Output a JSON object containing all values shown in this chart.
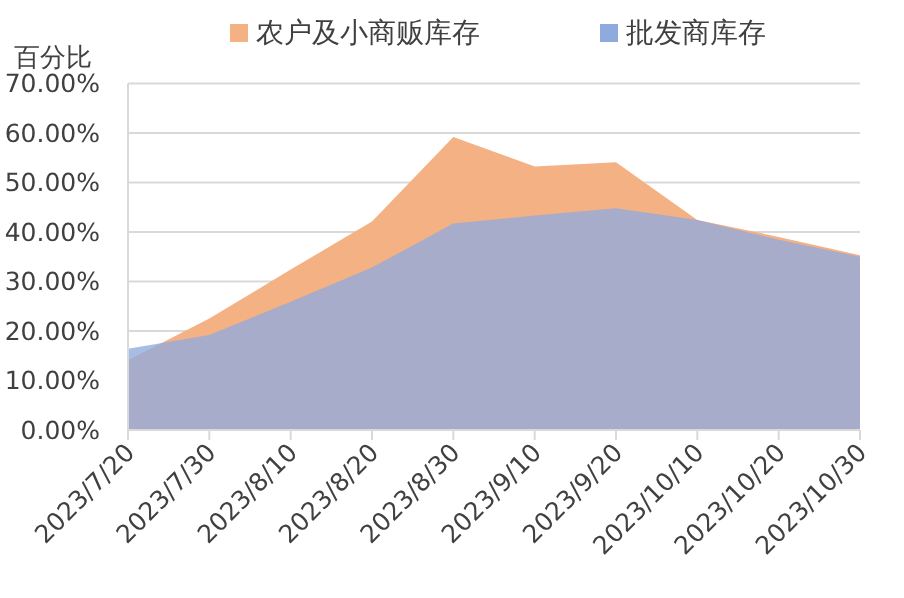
{
  "chart_data": {
    "type": "area",
    "ylabel": "百分比",
    "categories": [
      "2023/7/20",
      "2023/7/30",
      "2023/8/10",
      "2023/8/20",
      "2023/8/30",
      "2023/9/10",
      "2023/9/20",
      "2023/10/10",
      "2023/10/20",
      "2023/10/30"
    ],
    "series": [
      {
        "name": "农户及小商贩库存",
        "color": "#f4b183",
        "values": [
          14.1,
          22.5,
          32.4,
          42.1,
          59.2,
          53.2,
          54.1,
          42.4,
          39.0,
          35.3
        ]
      },
      {
        "name": "批发商库存",
        "color": "#8faadc",
        "values": [
          16.4,
          19.2,
          25.9,
          32.8,
          41.7,
          43.3,
          44.8,
          42.4,
          38.4,
          35.0
        ]
      }
    ],
    "ylim": [
      0,
      70
    ],
    "yticks": [
      {
        "value": 0,
        "label": "0.00%"
      },
      {
        "value": 10,
        "label": "10.00%"
      },
      {
        "value": 20,
        "label": "20.00%"
      },
      {
        "value": 30,
        "label": "30.00%"
      },
      {
        "value": 40,
        "label": "40.00%"
      },
      {
        "value": 50,
        "label": "50.00%"
      },
      {
        "value": 60,
        "label": "60.00%"
      },
      {
        "value": 70,
        "label": "70.00%"
      }
    ],
    "grid": "y",
    "legend": "top"
  }
}
